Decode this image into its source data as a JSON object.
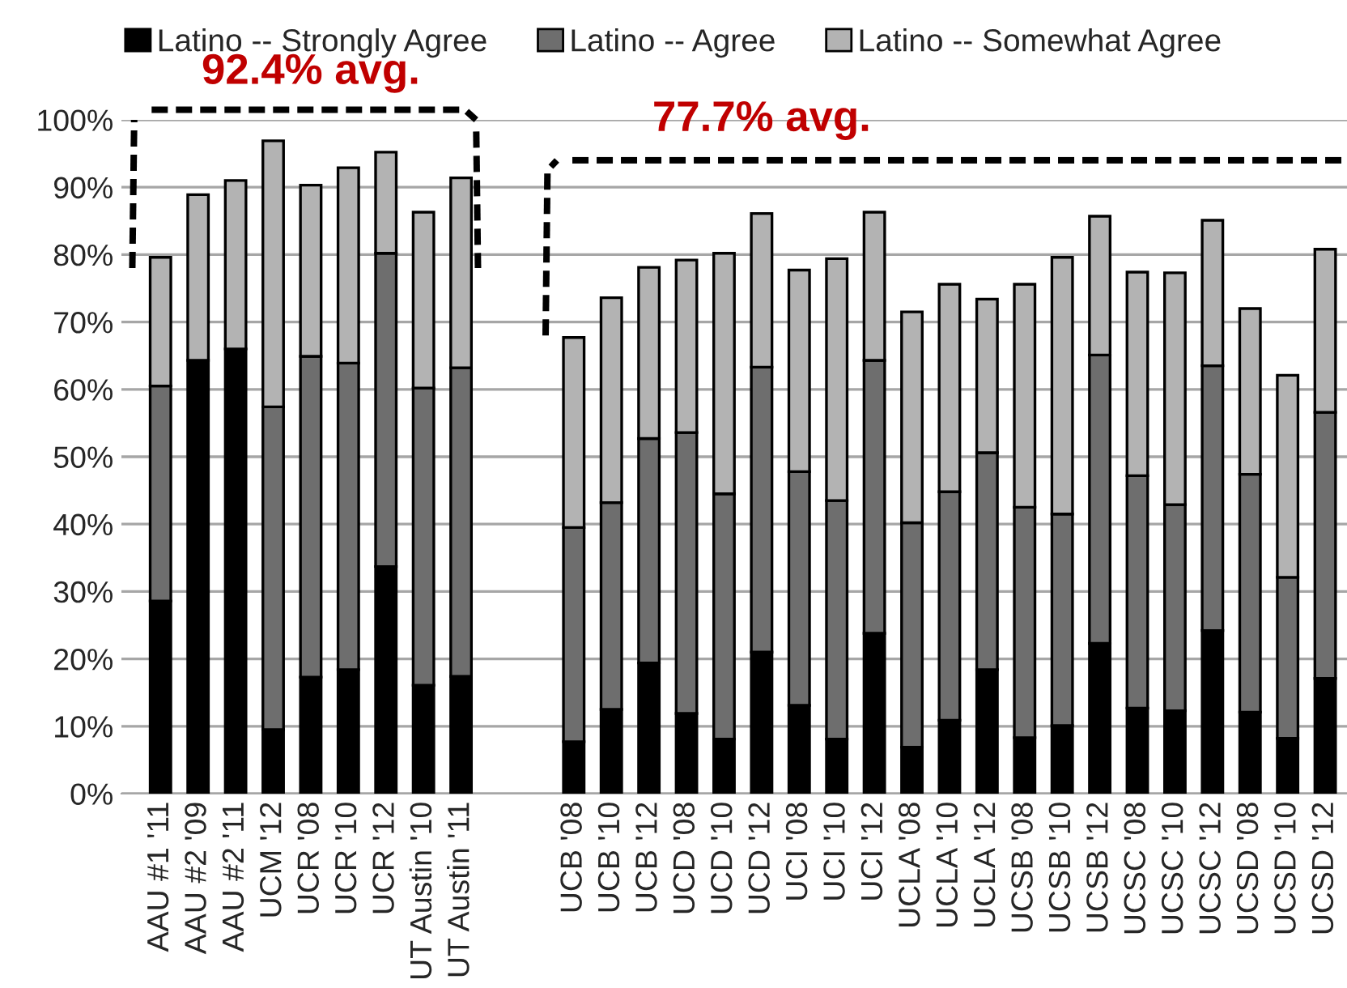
{
  "chart_data": {
    "type": "bar",
    "stacked": true,
    "categories": [
      "AAU #1 '11",
      "AAU #2 '09",
      "AAU #2 '11",
      "UCM '12",
      "UCR '08",
      "UCR '10",
      "UCR '12",
      "UT Austin '10",
      "UT Austin '11",
      null,
      null,
      "UCB '08",
      "UCB '10",
      "UCB '12",
      "UCD '08",
      "UCD '10",
      "UCD '12",
      "UCI '08",
      "UCI '10",
      "UCI '12",
      "UCLA '08",
      "UCLA '10",
      "UCLA '12",
      "UCSB '08",
      "UCSB '10",
      "UCSB '12",
      "UCSC '08",
      "UCSC '10",
      "UCSC '12",
      "UCSD '08",
      "UCSD '10",
      "UCSD '12"
    ],
    "series": [
      {
        "name": "Latino -- Strongly Agree",
        "color": "#000000",
        "values": [
          28.6,
          64.3,
          66.0,
          9.5,
          17.3,
          18.4,
          33.7,
          16.1,
          17.4,
          null,
          null,
          7.7,
          12.5,
          19.4,
          11.9,
          8.1,
          21.0,
          13.1,
          8.1,
          23.8,
          6.9,
          10.9,
          18.4,
          8.3,
          10.1,
          22.3,
          12.7,
          12.3,
          24.2,
          12.1,
          8.2,
          17.1
        ]
      },
      {
        "name": "Latino -- Agree",
        "color": "#6e6e6e",
        "values": [
          31.9,
          0,
          0,
          47.9,
          47.6,
          45.5,
          46.5,
          44.1,
          45.8,
          null,
          null,
          31.8,
          30.7,
          33.3,
          41.7,
          36.4,
          42.3,
          34.7,
          35.4,
          40.5,
          33.3,
          33.9,
          32.2,
          34.2,
          31.4,
          42.8,
          34.5,
          30.6,
          39.3,
          35.3,
          23.9,
          39.5
        ]
      },
      {
        "name": "Latino -- Somewhat Agree",
        "color": "#b3b3b3",
        "values": [
          19.1,
          24.6,
          25.0,
          39.5,
          25.4,
          29.0,
          15.0,
          26.1,
          28.2,
          null,
          null,
          28.2,
          30.4,
          25.4,
          25.6,
          35.7,
          22.8,
          29.9,
          35.9,
          22.0,
          31.3,
          30.8,
          22.8,
          33.1,
          38.1,
          20.6,
          30.2,
          34.4,
          21.6,
          24.6,
          30.0,
          24.2
        ]
      }
    ],
    "ylim": [
      0,
      100
    ],
    "yticks": [
      {
        "value": 0,
        "label": "0%"
      },
      {
        "value": 10,
        "label": "10%"
      },
      {
        "value": 20,
        "label": "20%"
      },
      {
        "value": 30,
        "label": "30%"
      },
      {
        "value": 40,
        "label": "40%"
      },
      {
        "value": 50,
        "label": "50%"
      },
      {
        "value": 60,
        "label": "60%"
      },
      {
        "value": 70,
        "label": "70%"
      },
      {
        "value": 80,
        "label": "80%"
      },
      {
        "value": 90,
        "label": "90%"
      },
      {
        "value": 100,
        "label": "100%"
      }
    ],
    "grid": "y",
    "legend": "top",
    "annotations": [
      "92.4% avg.",
      "77.7% avg."
    ]
  }
}
